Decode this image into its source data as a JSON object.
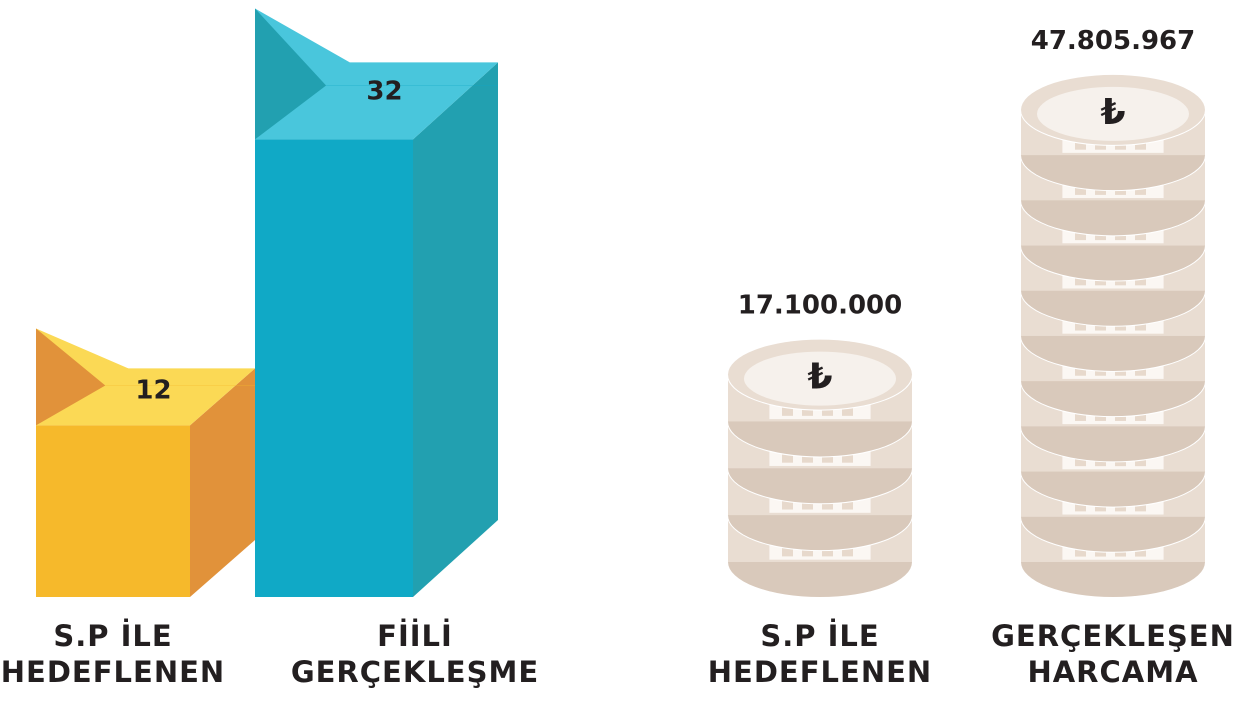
{
  "chart_data": [
    {
      "type": "bar",
      "categories": [
        "S.P İLE HEDEFLENEN",
        "FİİLİ GERÇEKLEŞME"
      ],
      "values": [
        12,
        32
      ],
      "colors": [
        "#f6b92b",
        "#10a9c6"
      ],
      "side_colors": [
        "#e1923a",
        "#22a0b0"
      ],
      "top_colors": [
        "#fbd955",
        "#49c6dc"
      ]
    },
    {
      "type": "coins",
      "categories": [
        "S.P İLE HEDEFLENEN",
        "GERÇEKLEŞEN HARCAMA"
      ],
      "values": [
        17100000,
        47805967
      ],
      "value_labels": [
        "17.100.000",
        "47.805.967"
      ],
      "currency_symbol": "₺",
      "color": "#e9ddd2"
    }
  ]
}
